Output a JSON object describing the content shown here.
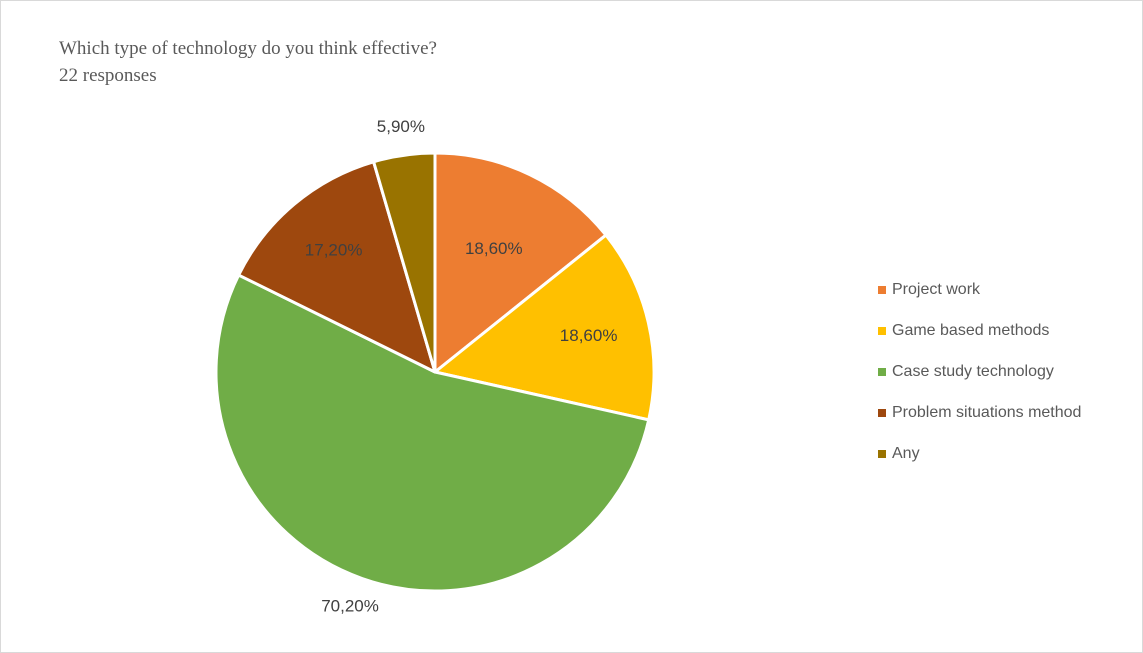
{
  "chart_data": {
    "type": "pie",
    "title": "Which type of technology do you think effective?",
    "subtitle": "22 responses",
    "legend_position": "right",
    "start_angle_deg": 0,
    "slices": [
      {
        "name": "Project work",
        "value": 18.6,
        "label": "18,60%",
        "color": "#ED7D31"
      },
      {
        "name": "Game based methods",
        "value": 18.6,
        "label": "18,60%",
        "color": "#FFC000"
      },
      {
        "name": "Case study technology",
        "value": 70.2,
        "label": "70,20%",
        "color": "#70AD47"
      },
      {
        "name": "Problem situations method",
        "value": 17.2,
        "label": "17,20%",
        "color": "#9E480E"
      },
      {
        "name": "Any",
        "value": 5.9,
        "label": "5,90%",
        "color": "#997300"
      }
    ]
  }
}
